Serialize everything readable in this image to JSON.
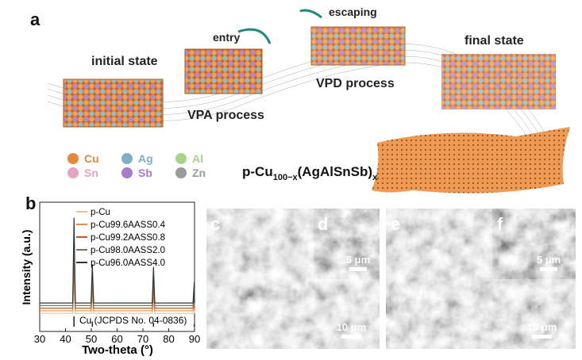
{
  "panel_a": {
    "label": "a",
    "initial": "initial state",
    "entry": "entry",
    "vpa": "VPA process",
    "escaping": "escaping",
    "vpd": "VPD process",
    "final": "final state",
    "elements": [
      {
        "name": "Cu",
        "color": "#e8893a"
      },
      {
        "name": "Ag",
        "color": "#7fb0c4"
      },
      {
        "name": "Al",
        "color": "#a8d48a"
      },
      {
        "name": "Sn",
        "color": "#e7a3c2"
      },
      {
        "name": "Sb",
        "color": "#a77ccf"
      },
      {
        "name": "Zn",
        "color": "#9a9a9a"
      }
    ],
    "formula": [
      "p-Cu",
      "100−x",
      "(AgAlSnSb)",
      "x"
    ]
  },
  "chart_data": {
    "type": "line",
    "label": "b",
    "x_label": "Two-theta (°)",
    "y_label": "Intensity (a.u.)",
    "x": [
      30,
      42.8,
      43.3,
      43.8,
      49.9,
      50.4,
      50.9,
      73.6,
      74.1,
      74.6,
      89.4,
      89.9,
      90
    ],
    "xlim": [
      30,
      90
    ],
    "xticks": [
      30,
      40,
      50,
      60,
      70,
      80,
      90
    ],
    "ylim": [
      0,
      100
    ],
    "series": [
      {
        "name": "p-Cu",
        "color": "#f3c08a",
        "values": [
          14,
          14,
          40,
          14,
          14,
          28,
          14,
          14,
          24,
          14,
          14,
          20,
          14
        ]
      },
      {
        "name": "p-Cu99.6AASS0.4",
        "color": "#e0904a",
        "values": [
          16,
          16,
          55,
          16,
          16,
          34,
          16,
          16,
          30,
          16,
          16,
          24,
          16
        ]
      },
      {
        "name": "p-Cu99.2AASS0.8",
        "color": "#c05a2c",
        "values": [
          18,
          18,
          68,
          18,
          18,
          40,
          18,
          18,
          36,
          18,
          18,
          28,
          18
        ]
      },
      {
        "name": "p-Cu98.0AASS2.0",
        "color": "#6e7b5c",
        "values": [
          20,
          20,
          78,
          20,
          20,
          46,
          20,
          20,
          44,
          20,
          20,
          32,
          20
        ]
      },
      {
        "name": "p-Cu96.0AASS4.0",
        "color": "#2d3833",
        "values": [
          22,
          22,
          88,
          22,
          22,
          52,
          22,
          22,
          50,
          22,
          22,
          38,
          22
        ]
      }
    ],
    "reference": {
      "label": "Cu (JCPDS No. 04-0836)",
      "x": [
        43.3,
        50.4,
        74.1,
        89.9
      ],
      "values": [
        8,
        4,
        3,
        2
      ]
    }
  },
  "sem": [
    {
      "label": "c",
      "scale": "10 μm"
    },
    {
      "label": "d",
      "scale": "5 μm"
    },
    {
      "label": "e",
      "scale": "10 μm"
    },
    {
      "label": "f",
      "scale": "5 μm"
    }
  ]
}
